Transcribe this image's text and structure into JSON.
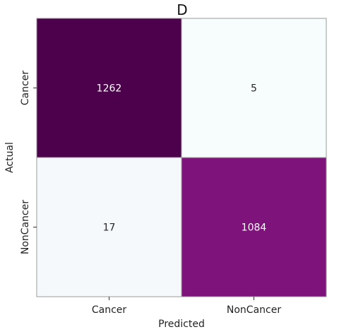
{
  "chart_data": {
    "type": "heatmap",
    "title": "D",
    "xlabel": "Predicted",
    "ylabel": "Actual",
    "x_categories": [
      "Cancer",
      "NonCancer"
    ],
    "y_categories": [
      "Cancer",
      "NonCancer"
    ],
    "values": [
      [
        1262,
        5
      ],
      [
        17,
        1084
      ]
    ],
    "colorscale": {
      "min_color": "#f7fcfd",
      "max_color": "#4d004b",
      "mid_color": "#81147e"
    },
    "grid": false,
    "legend": "none"
  }
}
